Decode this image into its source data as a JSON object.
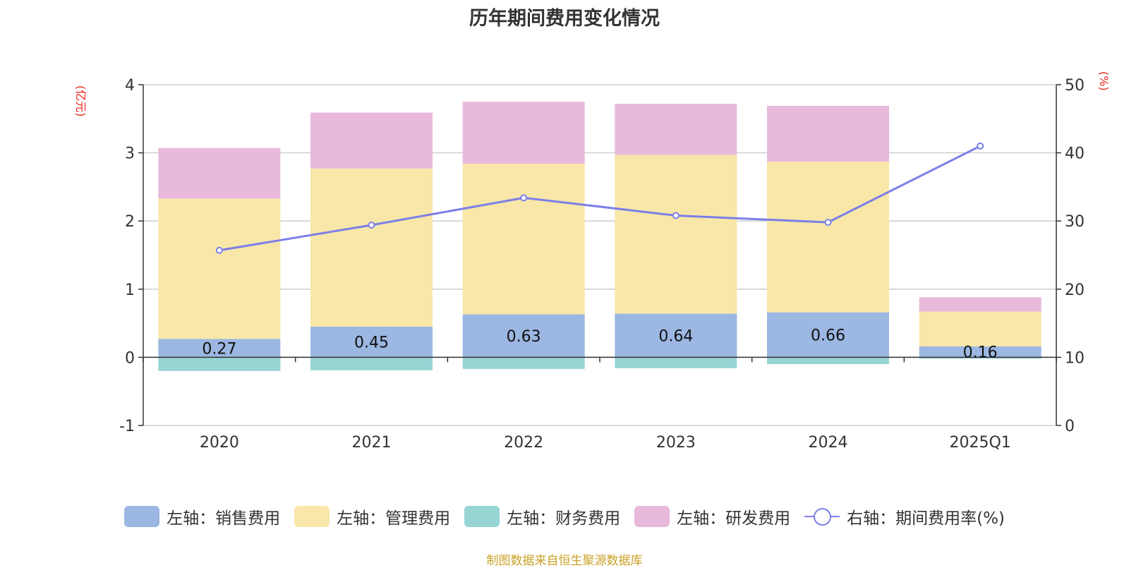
{
  "colors": {
    "sales": "#9bb7e2",
    "admin": "#f8e7a9",
    "finance": "#97d4d4",
    "rnd": "#e8b9db",
    "rate_line": "#7b7fe8",
    "axis_unit": "#e8251a",
    "source": "#c9a227"
  },
  "chart_data": {
    "type": "bar",
    "title": "历年期间费用变化情况",
    "left_axis_unit": "(亿元)",
    "right_axis_unit": "(%)",
    "categories": [
      "2020",
      "2021",
      "2022",
      "2023",
      "2024",
      "2025Q1"
    ],
    "left_ylim": [
      -1,
      4
    ],
    "left_yticks": [
      -1,
      0,
      1,
      2,
      3,
      4
    ],
    "right_ylim": [
      0,
      50
    ],
    "right_yticks": [
      0,
      10,
      20,
      30,
      40,
      50
    ],
    "grid": true,
    "legend_position": "bottom",
    "stacked": true,
    "series": [
      {
        "name": "左轴：销售费用",
        "key": "sales",
        "axis": "left",
        "values": [
          0.27,
          0.45,
          0.63,
          0.64,
          0.66,
          0.16
        ],
        "labels_shown": true
      },
      {
        "name": "左轴：管理费用",
        "key": "admin",
        "axis": "left",
        "values": [
          2.06,
          2.32,
          2.21,
          2.33,
          2.21,
          0.51
        ]
      },
      {
        "name": "左轴：财务费用",
        "key": "finance",
        "axis": "left",
        "values": [
          -0.2,
          -0.19,
          -0.17,
          -0.16,
          -0.1,
          -0.02
        ]
      },
      {
        "name": "左轴：研发费用",
        "key": "rnd",
        "axis": "left",
        "values": [
          0.74,
          0.82,
          0.91,
          0.75,
          0.82,
          0.21
        ]
      },
      {
        "name": "右轴：期间费用率(%)",
        "key": "rate_line",
        "axis": "right",
        "type": "line",
        "values": [
          25.7,
          29.4,
          33.4,
          30.8,
          29.8,
          41.0
        ]
      }
    ]
  },
  "legend": [
    {
      "label": "左轴：销售费用",
      "key": "sales"
    },
    {
      "label": "左轴：管理费用",
      "key": "admin"
    },
    {
      "label": "左轴：财务费用",
      "key": "finance"
    },
    {
      "label": "左轴：研发费用",
      "key": "rnd"
    },
    {
      "label": "右轴：期间费用率(%)",
      "key": "rate_line"
    }
  ],
  "source_text": "制图数据来自恒生聚源数据库"
}
